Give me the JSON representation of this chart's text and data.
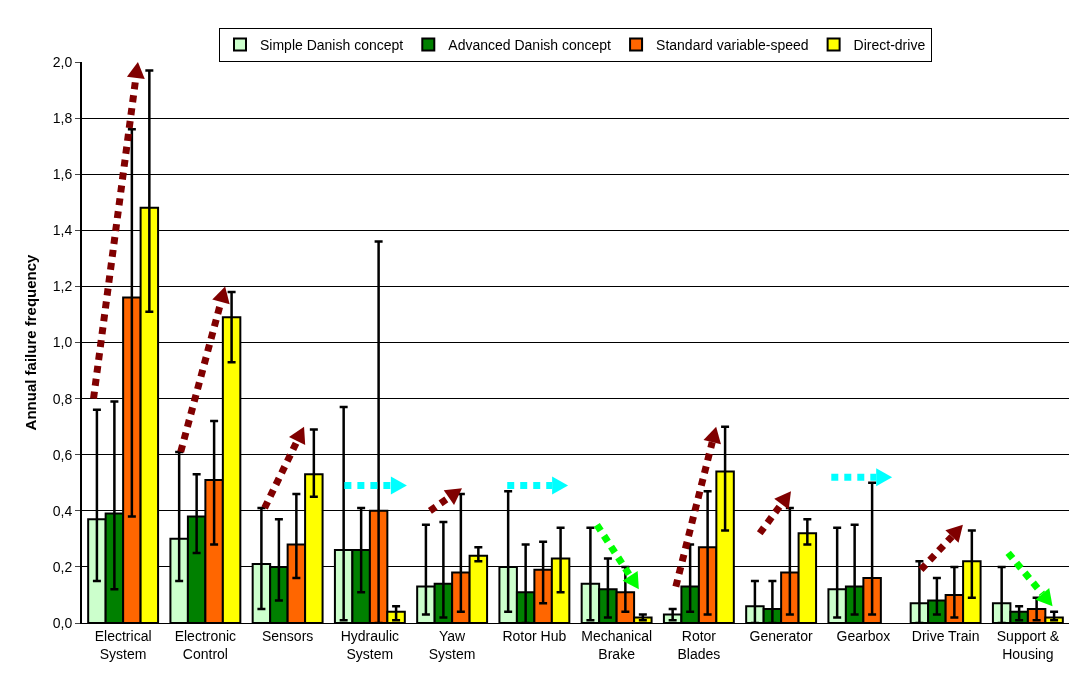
{
  "chart_data": {
    "type": "bar",
    "ylabel": "Annual failure frequency",
    "categories": [
      "Electrical\nSystem",
      "Electronic\nControl",
      "Sensors",
      "Hydraulic\nSystem",
      "Yaw\nSystem",
      "Rotor Hub",
      "Mechanical\nBrake",
      "Rotor\nBlades",
      "Generator",
      "Gearbox",
      "Drive Train",
      "Support &\nHousing"
    ],
    "series": [
      {
        "name": "Simple Danish concept",
        "color": "#ccffcc",
        "values": [
          0.37,
          0.3,
          0.21,
          0.26,
          0.13,
          0.2,
          0.14,
          0.03,
          0.06,
          0.12,
          0.07,
          0.07
        ],
        "errors": [
          [
            0.15,
            0.76
          ],
          [
            0.15,
            0.61
          ],
          [
            0.05,
            0.41
          ],
          [
            0.01,
            0.77
          ],
          [
            0.03,
            0.35
          ],
          [
            0.04,
            0.47
          ],
          [
            0.01,
            0.34
          ],
          [
            0.01,
            0.05
          ],
          [
            0.0,
            0.15
          ],
          [
            0.02,
            0.34
          ],
          [
            0.0,
            0.22
          ],
          [
            0.0,
            0.2
          ]
        ]
      },
      {
        "name": "Advanced Danish concept",
        "color": "#008000",
        "values": [
          0.39,
          0.38,
          0.2,
          0.26,
          0.14,
          0.11,
          0.12,
          0.13,
          0.05,
          0.13,
          0.08,
          0.04
        ],
        "errors": [
          [
            0.12,
            0.79
          ],
          [
            0.25,
            0.53
          ],
          [
            0.08,
            0.37
          ],
          [
            0.11,
            0.41
          ],
          [
            0.02,
            0.36
          ],
          [
            0.0,
            0.28
          ],
          [
            0.02,
            0.23
          ],
          [
            0.04,
            0.28
          ],
          [
            0.0,
            0.15
          ],
          [
            0.03,
            0.35
          ],
          [
            0.03,
            0.16
          ],
          [
            0.01,
            0.06
          ]
        ]
      },
      {
        "name": "Standard variable-speed",
        "color": "#ff6600",
        "values": [
          1.16,
          0.51,
          0.28,
          0.4,
          0.18,
          0.19,
          0.11,
          0.27,
          0.18,
          0.16,
          0.1,
          0.05
        ],
        "errors": [
          [
            0.38,
            1.76
          ],
          [
            0.28,
            0.72
          ],
          [
            0.16,
            0.46
          ],
          [
            0.0,
            1.36
          ],
          [
            0.04,
            0.46
          ],
          [
            0.07,
            0.29
          ],
          [
            0.04,
            0.2
          ],
          [
            0.03,
            0.47
          ],
          [
            0.03,
            0.41
          ],
          [
            0.03,
            0.5
          ],
          [
            0.02,
            0.2
          ],
          [
            0.01,
            0.09
          ]
        ]
      },
      {
        "name": "Direct-drive",
        "color": "#ffff00",
        "values": [
          1.48,
          1.09,
          0.53,
          0.04,
          0.24,
          0.23,
          0.02,
          0.54,
          0.32,
          null,
          0.22,
          0.02
        ],
        "errors": [
          [
            1.11,
            1.97
          ],
          [
            0.93,
            1.18
          ],
          [
            0.45,
            0.69
          ],
          [
            0.01,
            0.06
          ],
          [
            0.22,
            0.27
          ],
          [
            0.11,
            0.34
          ],
          [
            0.01,
            0.03
          ],
          [
            0.33,
            0.7
          ],
          [
            0.28,
            0.37
          ],
          null,
          [
            0.09,
            0.33
          ],
          [
            0.01,
            0.04
          ]
        ]
      }
    ],
    "ylim": [
      0,
      2.0
    ],
    "yticks": [
      {
        "value": 0,
        "label": "0,0"
      },
      {
        "value": 0.2,
        "label": "0,2"
      },
      {
        "value": 0.4,
        "label": "0,4"
      },
      {
        "value": 0.6,
        "label": "0,6"
      },
      {
        "value": 0.8,
        "label": "0,8"
      },
      {
        "value": 1.0,
        "label": "1,0"
      },
      {
        "value": 1.2,
        "label": "1,2"
      },
      {
        "value": 1.4,
        "label": "1,4"
      },
      {
        "value": 1.6,
        "label": "1,6"
      },
      {
        "value": 1.8,
        "label": "1,8"
      },
      {
        "value": 2.0,
        "label": "2,0"
      }
    ],
    "grid": "y",
    "legend": "top"
  }
}
